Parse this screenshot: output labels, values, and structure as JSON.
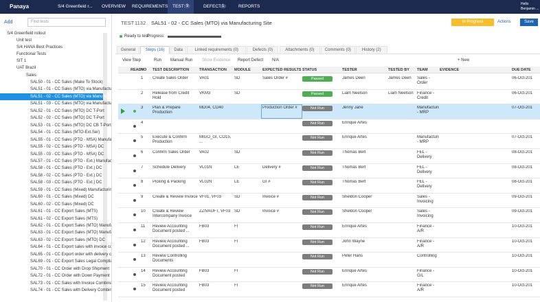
{
  "nav": {
    "brand": "Panaya",
    "project": "S/4 Greenfield r...",
    "items": [
      "OVERVIEW",
      "REQUIREMENTS",
      "TESTS",
      "DEFECTS",
      "REPORTS"
    ],
    "tests_badge": "9",
    "defects_badge": "1",
    "greeting": "Hello",
    "user": "Benjamin ..."
  },
  "sidebar": {
    "add": "Add",
    "search": "Find tests",
    "root": "S/4 Greenfield rollout",
    "folders": [
      "Unit test",
      "S/4 HANA Best Practices",
      "Functional Tests",
      "SIT 1",
      "UAT Brazil"
    ],
    "subfolder": "Sales",
    "tests": [
      "SAL50 - 01 - CC Sales (Make To Stock)",
      "SAL51 - 01 - CC Sales (MTO) via Manufacturing Si",
      "SAL51 - 02 - CC Sales (MTO) via Manufacturing Si",
      "SAL51 - 03 - CC Sales (MTO) via Manufacturing Si",
      "SAL52 - 01 - CC Sales (MTO) DC T-Port",
      "SAL52 - 02 - CC Sales (MTO) DC T-Port",
      "SAL53 - 01 - CC Sales (MTO) DC CB T-Port",
      "SAL54 - 01 - CC Sales (MTO-Ext.Ser)",
      "SAL55 - 01 - CC Sales (PTO - MSA) Manufacturing",
      "SAL55 - 02 - CC Sales (PTO - MSA) DC",
      "SAL55 - 03 - CC Sales (PTO - MSA) DC",
      "SAL57 - 01 - CC Sales (PTO - Ext.) Manufacturing",
      "SAL58 - 01 - CC Sales (PTO - Ext.) DC",
      "SAL58 - 02 - CC Sales (PTO - Ext.) DC",
      "SAL58 - 03 - CC Sales (PTO - Ext.) DC",
      "SAL59 - 01 - CC Sales (Mixed) Manufacturing",
      "SAL60 - 01 - CC Sales (Mixed) DC",
      "SAL60 - 02 - CC Sales (Mixed) DC",
      "SAL61 - 01 - CC Export Sales (MTS)",
      "SAL61 - 02 - CC Export Sales (MTS)",
      "SAL62 - 01 - CC Export Sales (MTO) Manufacturir",
      "SAL63 - 01 - CC Export Sales (MTO) Manufacturir",
      "SAL63 - 02 - CC Export Sales (MTO) DC",
      "SAL64 - 01 - CC Export sales with invoice combi",
      "SAL65 - 01 - CC Export order with delivery comb",
      "SAL69 - 01 - CC Export Sales Legal Compliance",
      "SAL70 - 01 - CC Order with Drop Shipment",
      "SAL72 - 01 - CC Order with Down Payment",
      "SAL73 - 01 - CC Sales with Invoice Combination",
      "SAL74 - 01 - CC Sales with Delivery Combination"
    ]
  },
  "header": {
    "label": "TEST",
    "id": "1132",
    "title": "SAL51 - 02 - CC Sales (MTO) via Manufacturing Site",
    "state": "In Progress",
    "actions": "Actions",
    "save": "Save",
    "ready": "Ready to test",
    "progress": "Progress:"
  },
  "tabs": [
    "General",
    "Steps (16)",
    "Data",
    "Linked requirements (0)",
    "Defects (0)",
    "Attachments (0)",
    "Comments (0)",
    "History (2)"
  ],
  "toolbar": {
    "view": "View Step",
    "run": "Run",
    "manual": "Manual Run",
    "evidence": "Show Evidence",
    "defect": "Report Defect",
    "na": "N/A",
    "new": "+ New"
  },
  "table": {
    "columns": [
      "READY",
      "NO",
      "TEST DESCRIPTION",
      "TRANSACTION",
      "MODULE",
      "EXPECTED RESULTS",
      "STATUS",
      "TESTER",
      "TESTED BY",
      "TEAM",
      "EVIDENCE",
      "DUE DATE"
    ],
    "status_colors": {
      "Passed": "#4caf50",
      "Not Run": "#7d7d7d"
    },
    "rows": [
      {
        "no": "1",
        "description": "Create Sales Order",
        "transaction": "VA01",
        "module": "SD",
        "expected": "Sales Order #",
        "status": "Passed",
        "tester": "James Deen",
        "tested_by": "James Deen",
        "team": "Sales - Order",
        "due": "06-Oct-201"
      },
      {
        "no": "2",
        "description": "Release from Credit Hold",
        "transaction": "VKM3",
        "module": "SD",
        "status": "Passed",
        "tester": "Liam Neelson",
        "tested_by": "Liam Neelson",
        "team": "Finance - Credit",
        "due": "06-Oct-201"
      },
      {
        "no": "3",
        "description": "Plan & Prepare Production",
        "transaction": "MD04, CO40",
        "expected": "Production Order #",
        "status": "Not Run",
        "tester": "Jenny Jane",
        "team": "Manufacturing - MRP",
        "due": "07-Oct-201"
      },
      {
        "no": "4",
        "status": "Not Run",
        "tester": "Enrique Artes"
      },
      {
        "no": "5",
        "description": "Execute & Confirm Production",
        "transaction": "MIGO_GI, CO15, ...",
        "status": "Not Run",
        "tester": "Enrique Artes",
        "team": "Manufacturing - MRP",
        "due": "07-Oct-201"
      },
      {
        "no": "6",
        "description": "Confirm Sales Order",
        "transaction": "VA02",
        "module": "SD",
        "status": "Not Run",
        "tester": "Thomas Bert",
        "team": "FEL - Delivery",
        "due": "08-Oct-201"
      },
      {
        "no": "7",
        "description": "Schedule Delivery",
        "transaction": "VL01N",
        "module": "LE",
        "expected": "Delivery #",
        "status": "Not Run",
        "tester": "Thomas Bert",
        "team": "FEL - Delivery",
        "due": "08-Oct-201"
      },
      {
        "no": "8",
        "description": "Picking & Packing",
        "transaction": "VL02N",
        "module": "LE",
        "expected": "GI #",
        "status": "Not Run",
        "tester": "Thomas Bert",
        "team": "FEL - Delivery",
        "due": "08-Oct-201"
      },
      {
        "no": "9",
        "description": "Create & Review Invoice",
        "transaction": "VF01, VF03",
        "module": "SD",
        "expected": "Invoice #",
        "status": "Not Run",
        "tester": "Sheldon Cooper",
        "team": "Sales - Invoicing",
        "due": "09-Oct-201"
      },
      {
        "no": "10",
        "description": "Create & Review Intercompany Invoice",
        "transaction": "ZZIVAUFT, VF03",
        "module": "SD",
        "expected": "Invoice #",
        "status": "Not Run",
        "tester": "Sheldon Cooper",
        "team": "Sales - Invoicing",
        "due": "09-Oct-201"
      },
      {
        "no": "11",
        "description": "Review Accounting Document posted ...",
        "transaction": "FB03",
        "module": "FI",
        "status": "Not Run",
        "tester": "Enrique Artes",
        "team": "Finance - A/R",
        "due": "10-Oct-201"
      },
      {
        "no": "12",
        "description": "Review Accounting Document posted ...",
        "transaction": "FB03",
        "module": "FI",
        "status": "Not Run",
        "tester": "John Wayne",
        "team": "Finance - A/R",
        "due": "10-Oct-201"
      },
      {
        "no": "13",
        "description": "Review Controlling Documents",
        "status": "Not Run",
        "tester": "Peter Hans",
        "team": "Controlling",
        "due": "10-Oct-201"
      },
      {
        "no": "14",
        "description": "Review Accounting Document posted",
        "transaction": "FB03",
        "module": "FI",
        "status": "Not Run",
        "tester": "Enrique Artes",
        "team": "Finance - G/L",
        "due": "10-Oct-201"
      },
      {
        "no": "15",
        "description": "Review Accounting Document posted",
        "transaction": "FB03",
        "module": "FI",
        "status": "Not Run",
        "tester": "Enrique Artes",
        "team": "Finance - A/R",
        "due": "10-Oct-201"
      }
    ]
  }
}
